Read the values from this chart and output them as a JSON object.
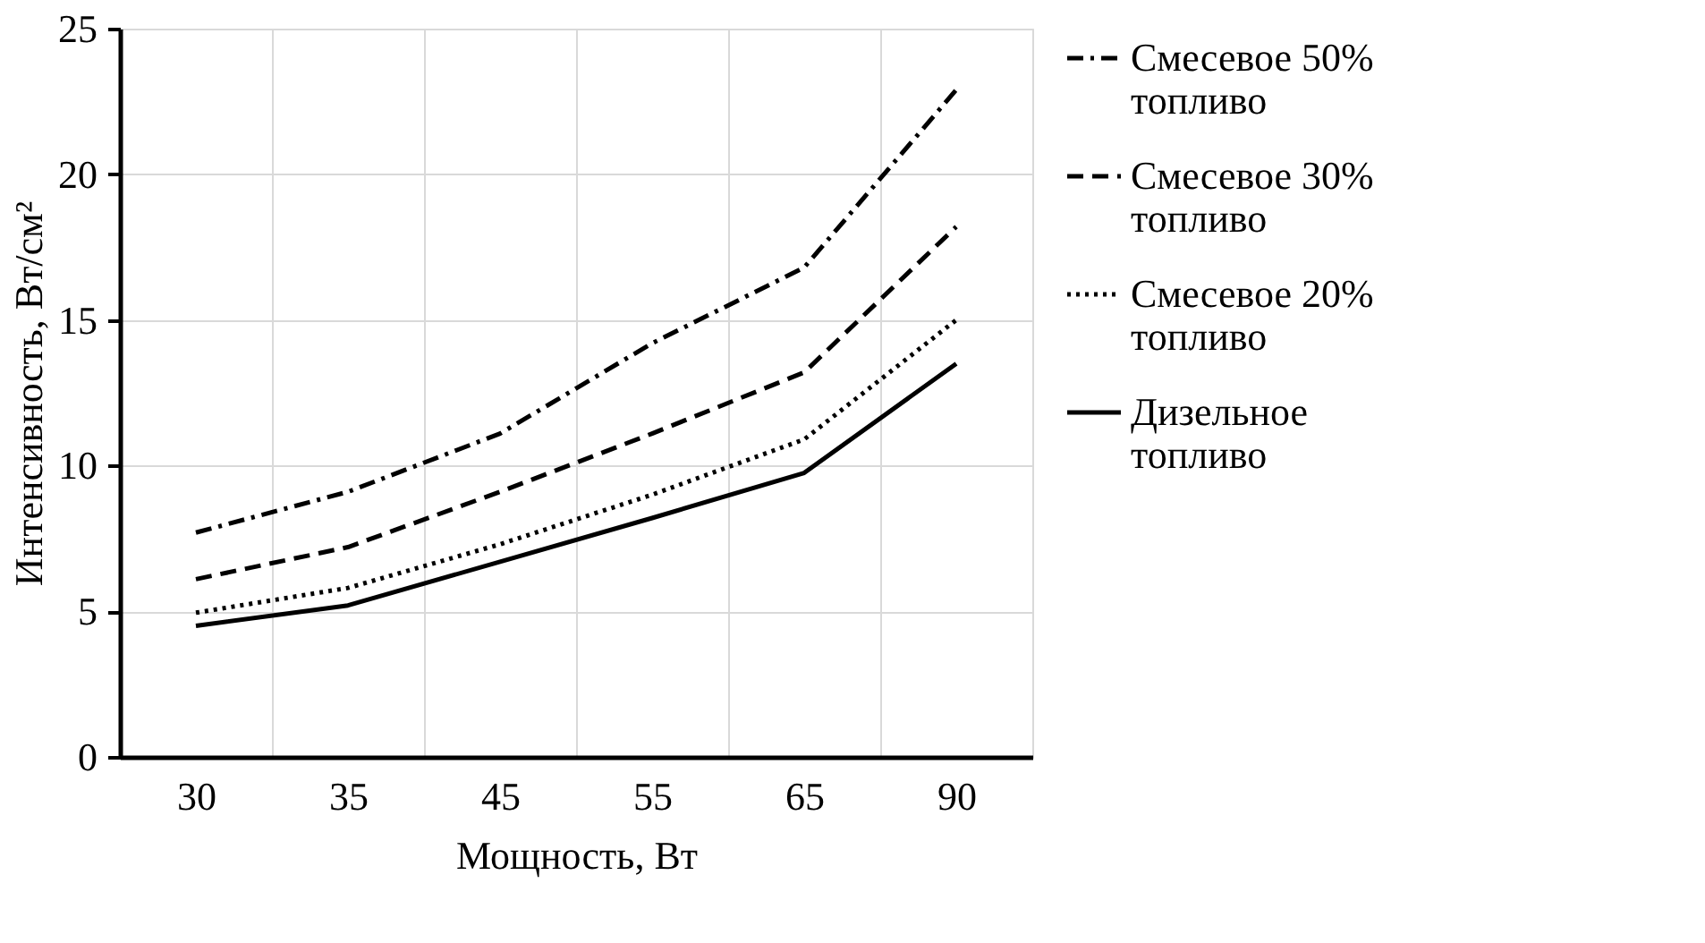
{
  "chart_data": {
    "type": "line",
    "xlabel": "Мощность, Вт",
    "ylabel": "Интенсивность, Вт/см²",
    "categories": [
      "30",
      "35",
      "45",
      "55",
      "65",
      "90"
    ],
    "series": [
      {
        "name": "Смесевое 50% топливо",
        "color": "#000000",
        "line_style": "dashdot",
        "values": [
          7.7,
          9.1,
          11.1,
          14.2,
          16.8,
          22.9
        ]
      },
      {
        "name": "Смесевое 30% топливо",
        "color": "#000000",
        "line_style": "dashed",
        "values": [
          6.1,
          7.2,
          9.1,
          11.1,
          13.2,
          18.2
        ]
      },
      {
        "name": "Смесевое 20% топливо",
        "color": "#000000",
        "line_style": "dotted",
        "values": [
          4.95,
          5.8,
          7.3,
          9.0,
          10.9,
          15.0
        ]
      },
      {
        "name": "Дизельное топливо",
        "color": "#000000",
        "line_style": "solid",
        "values": [
          4.5,
          5.2,
          6.7,
          8.2,
          9.75,
          13.5
        ]
      }
    ],
    "ylim": [
      0,
      25
    ],
    "yticks": [
      0,
      5,
      10,
      15,
      20,
      25
    ],
    "grid": true,
    "legend": "right",
    "marker": "none"
  }
}
